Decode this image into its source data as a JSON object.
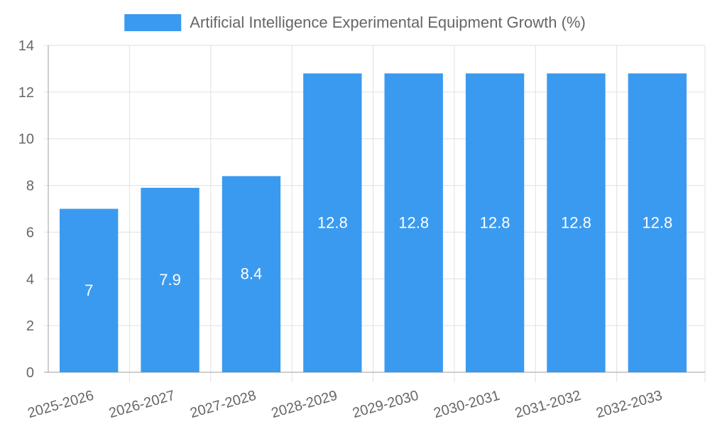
{
  "chart_data": {
    "type": "bar",
    "title": "",
    "xlabel": "",
    "ylabel": "",
    "categories": [
      "2025-2026",
      "2026-2027",
      "2027-2028",
      "2028-2029",
      "2029-2030",
      "2030-2031",
      "2031-2032",
      "2032-2033"
    ],
    "series": [
      {
        "name": "Artificial Intelligence Experimental Equipment Growth (%)",
        "values": [
          7,
          7.9,
          8.4,
          12.8,
          12.8,
          12.8,
          12.8,
          12.8
        ],
        "color": "#3a9af0"
      }
    ],
    "ylim": [
      0,
      14
    ],
    "yticks": [
      0,
      2,
      4,
      6,
      8,
      10,
      12,
      14
    ],
    "grid": true,
    "legend_position": "top",
    "data_labels": true
  }
}
